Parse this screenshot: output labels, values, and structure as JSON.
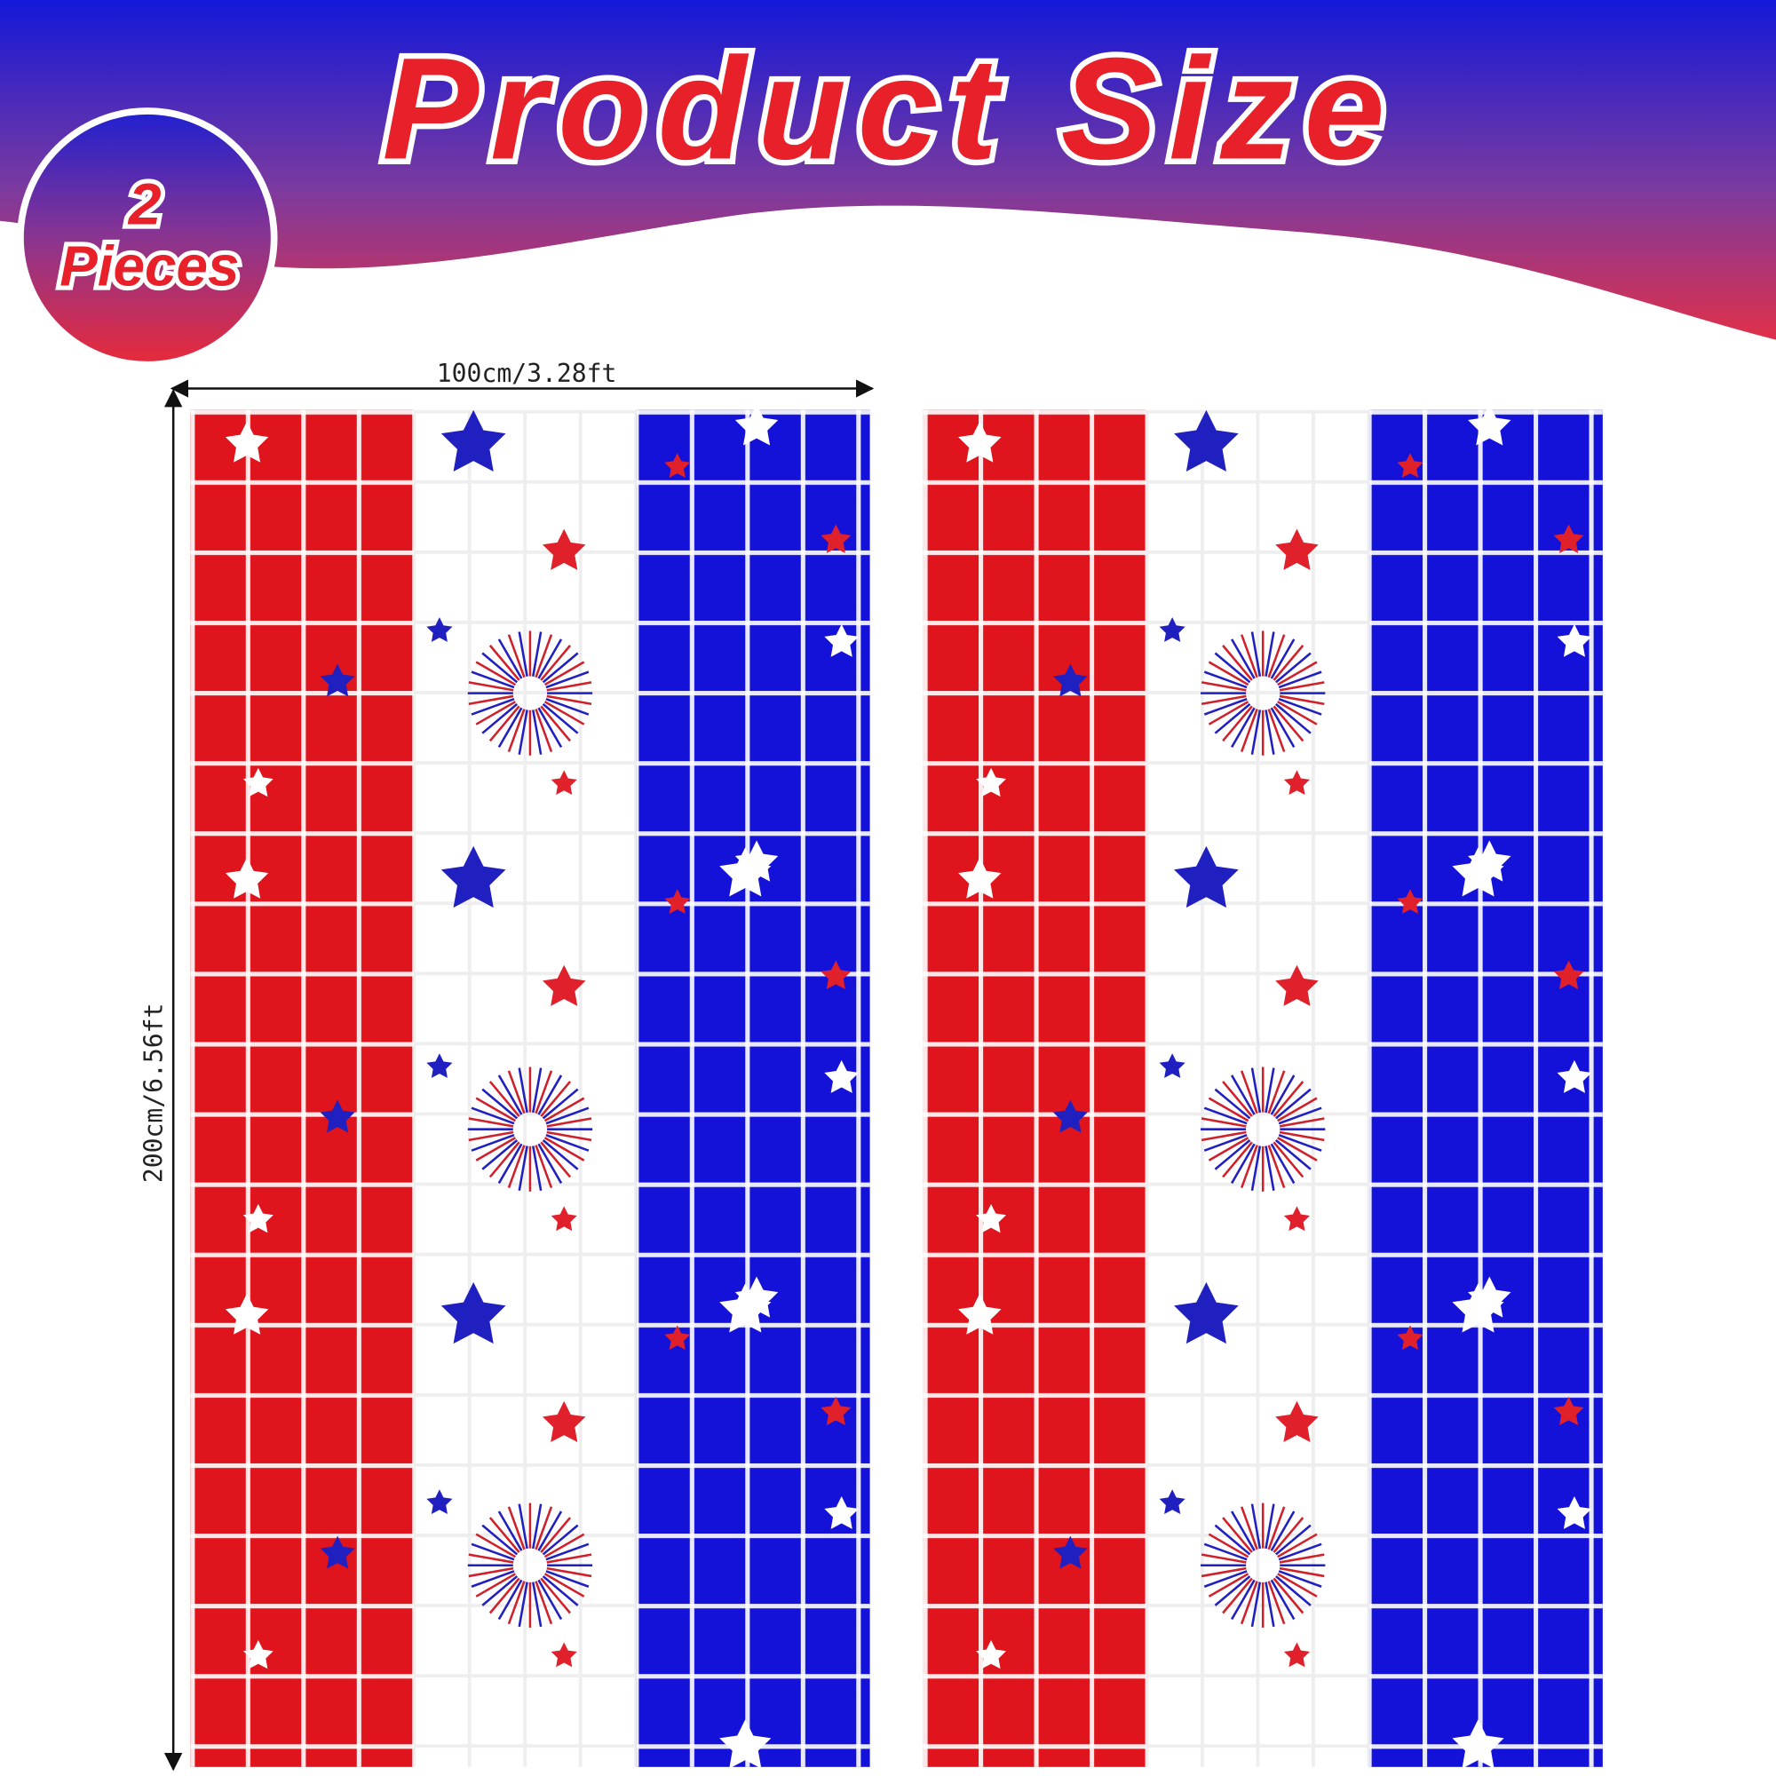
{
  "header": {
    "title": "Product Size"
  },
  "badge": {
    "count": "2",
    "label": "Pieces"
  },
  "dimensions": {
    "width": "100cm/3.28ft",
    "height": "200cm/6.56ft"
  }
}
